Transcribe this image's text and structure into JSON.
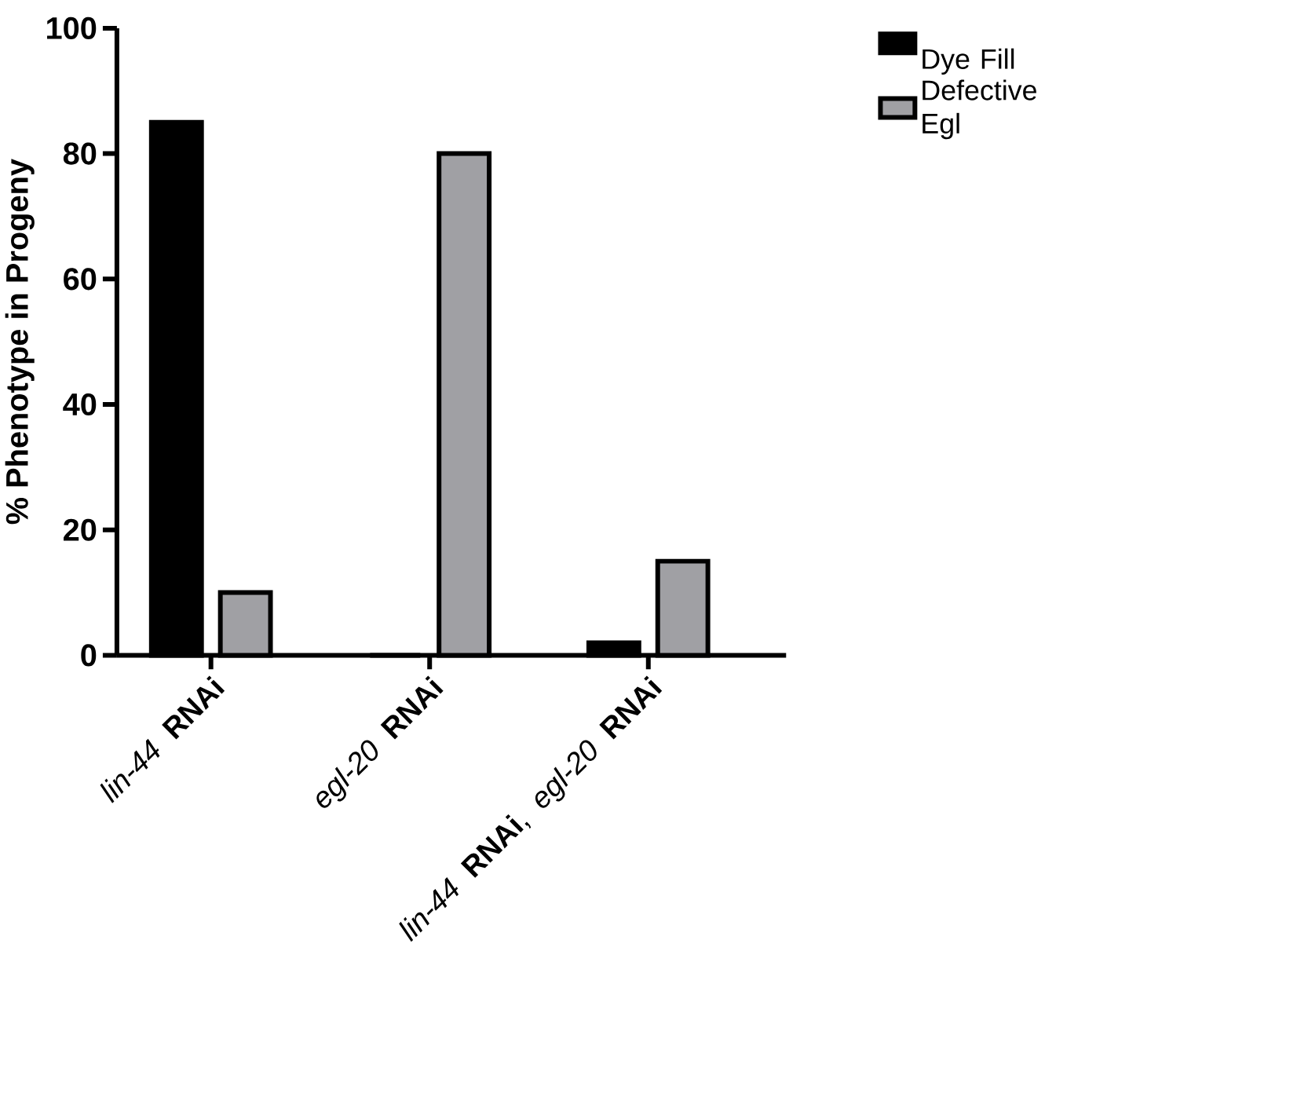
{
  "chart_data": {
    "type": "bar",
    "ylabel": "% Phenotype in Progeny",
    "categories": [
      "*lin-44* **RNAi**",
      "*egl-20* **RNAi**",
      "*lin-44* **RNAi**, *egl-20* **RNAi**"
    ],
    "series": [
      {
        "name": "Dye Fill Defective",
        "color": "#000000",
        "values": [
          85,
          0,
          2
        ]
      },
      {
        "name": "Egl",
        "color": "#a0a0a4",
        "values": [
          10,
          80,
          15
        ]
      }
    ],
    "ylim": [
      0,
      100
    ],
    "yticks": [
      0,
      20,
      40,
      60,
      80,
      100
    ],
    "legend": "top right"
  }
}
